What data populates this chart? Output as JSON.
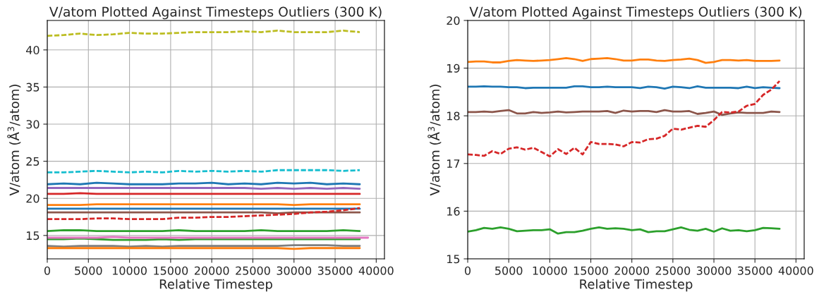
{
  "chart_data": [
    {
      "type": "line",
      "title": "V/atom Plotted Against Timesteps Outliers (300 K)",
      "xlabel": "Relative Timestep",
      "ylabel": "V/atom (Å$^{3}$/atom)",
      "x": [
        0,
        2000,
        4000,
        6000,
        8000,
        10000,
        12000,
        14000,
        16000,
        18000,
        20000,
        22000,
        24000,
        26000,
        28000,
        30000,
        32000,
        34000,
        36000,
        38000
      ],
      "xlim": [
        0,
        41000
      ],
      "xticks": [
        0,
        5000,
        10000,
        15000,
        20000,
        25000,
        30000,
        35000,
        40000
      ],
      "ylim": [
        11.85,
        43.97
      ],
      "yticks": [
        15,
        20,
        25,
        30,
        35,
        40
      ],
      "grid": true,
      "series": [
        {
          "color": "#bcbd22",
          "line_style": "dashed",
          "values": [
            41.9,
            42.0,
            42.2,
            42.0,
            42.1,
            42.3,
            42.2,
            42.2,
            42.3,
            42.4,
            42.4,
            42.4,
            42.5,
            42.4,
            42.6,
            42.4,
            42.4,
            42.4,
            42.6,
            42.4
          ]
        },
        {
          "color": "#17becf",
          "line_style": "dashed",
          "values": [
            23.5,
            23.5,
            23.6,
            23.7,
            23.6,
            23.5,
            23.6,
            23.5,
            23.7,
            23.6,
            23.7,
            23.6,
            23.7,
            23.6,
            23.8,
            23.8,
            23.8,
            23.8,
            23.7,
            23.8
          ]
        },
        {
          "color": "#1f77b4",
          "line_style": "solid",
          "values": [
            21.9,
            22.0,
            21.9,
            22.1,
            22.0,
            21.9,
            21.9,
            21.9,
            22.0,
            22.0,
            22.1,
            21.9,
            22.0,
            21.9,
            22.1,
            22.0,
            22.1,
            21.9,
            22.0,
            21.9
          ]
        },
        {
          "color": "#9467bd",
          "line_style": "solid",
          "values": [
            21.4,
            21.4,
            21.4,
            21.4,
            21.4,
            21.4,
            21.4,
            21.4,
            21.4,
            21.4,
            21.4,
            21.4,
            21.4,
            21.3,
            21.4,
            21.3,
            21.4,
            21.3,
            21.4,
            21.3
          ]
        },
        {
          "color": "#d62728",
          "line_style": "solid",
          "values": [
            20.6,
            20.6,
            20.7,
            20.6,
            20.6,
            20.6,
            20.6,
            20.6,
            20.6,
            20.6,
            20.6,
            20.6,
            20.6,
            20.6,
            20.6,
            20.6,
            20.6,
            20.6,
            20.6,
            20.6
          ]
        },
        {
          "color": "#ff7f0e",
          "line_style": "solid",
          "values": [
            19.1,
            19.1,
            19.1,
            19.2,
            19.2,
            19.2,
            19.2,
            19.2,
            19.2,
            19.2,
            19.2,
            19.2,
            19.2,
            19.2,
            19.2,
            19.1,
            19.2,
            19.2,
            19.2,
            19.2
          ]
        },
        {
          "color": "#1f77b4",
          "line_style": "solid",
          "values": [
            18.6,
            18.6,
            18.6,
            18.6,
            18.6,
            18.6,
            18.6,
            18.6,
            18.6,
            18.6,
            18.6,
            18.6,
            18.6,
            18.6,
            18.6,
            18.6,
            18.6,
            18.6,
            18.6,
            18.6
          ]
        },
        {
          "color": "#8c564b",
          "line_style": "solid",
          "values": [
            18.1,
            18.1,
            18.1,
            18.1,
            18.1,
            18.1,
            18.1,
            18.1,
            18.1,
            18.1,
            18.1,
            18.1,
            18.1,
            18.1,
            18.0,
            18.1,
            18.1,
            18.1,
            18.1,
            18.1
          ]
        },
        {
          "color": "#d62728",
          "line_style": "dashed",
          "values": [
            17.2,
            17.2,
            17.2,
            17.3,
            17.3,
            17.2,
            17.2,
            17.2,
            17.4,
            17.4,
            17.5,
            17.5,
            17.6,
            17.7,
            17.8,
            17.9,
            18.1,
            18.2,
            18.4,
            18.7
          ]
        },
        {
          "color": "#2ca02c",
          "line_style": "solid",
          "values": [
            15.6,
            15.7,
            15.7,
            15.6,
            15.6,
            15.6,
            15.6,
            15.6,
            15.7,
            15.6,
            15.6,
            15.6,
            15.6,
            15.7,
            15.6,
            15.6,
            15.6,
            15.6,
            15.7,
            15.6
          ]
        },
        {
          "color": "#2ca02c",
          "line_style": "solid",
          "values": [
            14.5,
            14.5,
            14.6,
            14.5,
            14.4,
            14.4,
            14.4,
            14.5,
            14.4,
            14.5,
            14.5,
            14.5,
            14.5,
            14.5,
            14.5,
            14.5,
            14.5,
            14.5,
            14.5,
            14.5
          ]
        },
        {
          "color": "#e377c2",
          "line_style": "solid",
          "x": [
            0,
            2000,
            4000,
            6000,
            8000,
            10000,
            12000,
            14000,
            16000,
            18000,
            20000,
            22000,
            24000,
            26000,
            28000,
            30000,
            32000,
            34000,
            36000,
            38000,
            39000
          ],
          "values": [
            14.7,
            14.7,
            14.7,
            14.7,
            14.8,
            14.7,
            14.7,
            14.7,
            14.7,
            14.7,
            14.7,
            14.7,
            14.7,
            14.7,
            14.7,
            14.7,
            14.7,
            14.7,
            14.7,
            14.7,
            14.7
          ]
        },
        {
          "color": "#7f7f7f",
          "line_style": "solid",
          "values": [
            13.6,
            13.5,
            13.6,
            13.6,
            13.6,
            13.5,
            13.6,
            13.5,
            13.6,
            13.6,
            13.6,
            13.6,
            13.6,
            13.6,
            13.6,
            13.7,
            13.7,
            13.7,
            13.6,
            13.6
          ]
        },
        {
          "color": "#ff7f0e",
          "line_style": "solid",
          "values": [
            13.3,
            13.3,
            13.3,
            13.3,
            13.3,
            13.3,
            13.3,
            13.3,
            13.3,
            13.3,
            13.3,
            13.3,
            13.3,
            13.3,
            13.3,
            13.2,
            13.3,
            13.3,
            13.3,
            13.3
          ]
        }
      ]
    },
    {
      "type": "line",
      "title": "V/atom Plotted Against Timesteps Outliers (300 K)",
      "xlabel": "Relative Timestep",
      "ylabel": "V/atom (Å$^{3}$/atom)",
      "x": [
        0,
        1000,
        2000,
        3000,
        4000,
        5000,
        6000,
        7000,
        8000,
        9000,
        10000,
        11000,
        12000,
        13000,
        14000,
        15000,
        16000,
        17000,
        18000,
        19000,
        20000,
        21000,
        22000,
        23000,
        24000,
        25000,
        26000,
        27000,
        28000,
        29000,
        30000,
        31000,
        32000,
        33000,
        34000,
        35000,
        36000,
        37000,
        38000
      ],
      "xlim": [
        0,
        41000
      ],
      "xticks": [
        0,
        5000,
        10000,
        15000,
        20000,
        25000,
        30000,
        35000,
        40000
      ],
      "ylim": [
        15,
        20
      ],
      "yticks": [
        15,
        16,
        17,
        18,
        19,
        20
      ],
      "grid": true,
      "series": [
        {
          "color": "#ff7f0e",
          "line_style": "solid",
          "values": [
            19.13,
            19.14,
            19.14,
            19.12,
            19.12,
            19.15,
            19.17,
            19.16,
            19.15,
            19.16,
            19.17,
            19.19,
            19.21,
            19.19,
            19.15,
            19.19,
            19.2,
            19.21,
            19.19,
            19.16,
            19.16,
            19.18,
            19.18,
            19.16,
            19.15,
            19.17,
            19.18,
            19.2,
            19.17,
            19.11,
            19.13,
            19.17,
            19.17,
            19.16,
            19.17,
            19.15,
            19.15,
            19.15,
            19.16
          ]
        },
        {
          "color": "#1f77b4",
          "line_style": "solid",
          "values": [
            18.61,
            18.61,
            18.62,
            18.61,
            18.61,
            18.6,
            18.6,
            18.58,
            18.59,
            18.59,
            18.59,
            18.59,
            18.59,
            18.62,
            18.62,
            18.6,
            18.6,
            18.61,
            18.6,
            18.6,
            18.6,
            18.58,
            18.61,
            18.6,
            18.57,
            18.61,
            18.6,
            18.58,
            18.62,
            18.59,
            18.59,
            18.59,
            18.59,
            18.58,
            18.61,
            18.58,
            18.6,
            18.59,
            18.58
          ]
        },
        {
          "color": "#8c564b",
          "line_style": "solid",
          "values": [
            18.08,
            18.08,
            18.09,
            18.08,
            18.1,
            18.12,
            18.05,
            18.05,
            18.08,
            18.06,
            18.07,
            18.09,
            18.07,
            18.08,
            18.09,
            18.09,
            18.09,
            18.1,
            18.06,
            18.11,
            18.09,
            18.1,
            18.1,
            18.08,
            18.12,
            18.09,
            18.09,
            18.1,
            18.04,
            18.06,
            18.09,
            18.02,
            18.05,
            18.07,
            18.06,
            18.06,
            18.06,
            18.09,
            18.08
          ]
        },
        {
          "color": "#d62728",
          "line_style": "dashed",
          "values": [
            17.19,
            17.18,
            17.16,
            17.26,
            17.2,
            17.31,
            17.34,
            17.29,
            17.33,
            17.24,
            17.15,
            17.3,
            17.2,
            17.33,
            17.19,
            17.45,
            17.41,
            17.41,
            17.4,
            17.36,
            17.45,
            17.44,
            17.51,
            17.52,
            17.58,
            17.73,
            17.71,
            17.75,
            17.79,
            17.77,
            17.91,
            18.08,
            18.07,
            18.09,
            18.21,
            18.25,
            18.44,
            18.55,
            18.73
          ]
        },
        {
          "color": "#2ca02c",
          "line_style": "solid",
          "values": [
            15.57,
            15.6,
            15.65,
            15.63,
            15.66,
            15.63,
            15.58,
            15.59,
            15.6,
            15.6,
            15.62,
            15.53,
            15.56,
            15.56,
            15.59,
            15.63,
            15.66,
            15.63,
            15.64,
            15.63,
            15.6,
            15.62,
            15.56,
            15.58,
            15.58,
            15.62,
            15.66,
            15.61,
            15.59,
            15.63,
            15.57,
            15.64,
            15.59,
            15.6,
            15.58,
            15.6,
            15.65,
            15.64,
            15.63
          ]
        }
      ]
    }
  ]
}
